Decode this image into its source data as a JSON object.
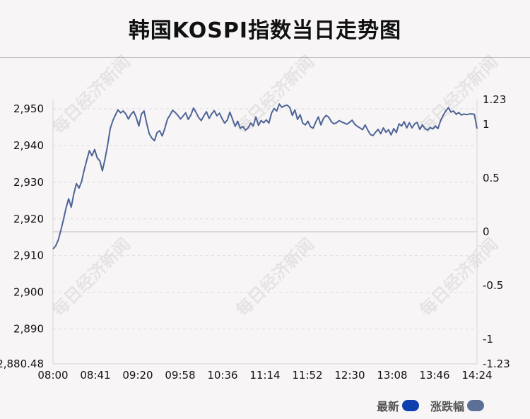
{
  "title": "韩国KOSPI指数当日走势图",
  "watermark": "每日经济新闻",
  "legend": [
    {
      "label": "最新",
      "color": "#0e3fae"
    },
    {
      "label": "涨跌幅",
      "color": "#5c7096"
    }
  ],
  "colors": {
    "line": "#4d6496",
    "grid": "#dcdcdc",
    "zero_line": "#cfcfcf",
    "axis_text": "#111111"
  },
  "chart_data": {
    "type": "line",
    "xlabel": "",
    "ylabel": "",
    "x_ticks": [
      "08:00",
      "08:41",
      "09:20",
      "09:58",
      "10:36",
      "11:14",
      "11:52",
      "12:30",
      "13:08",
      "13:46",
      "14:24"
    ],
    "y_left": {
      "range": [
        2880.48,
        2952.5
      ],
      "ticks": [
        2950,
        2940,
        2930,
        2920,
        2910,
        2900,
        2890
      ],
      "tick_labels": [
        "2,950",
        "2,940",
        "2,930",
        "2,920",
        "2,910",
        "2,900",
        "2,890"
      ],
      "min_label": "2,880.48"
    },
    "y_right": {
      "range": [
        -1.23,
        1.23
      ],
      "ticks": [
        1.23,
        1,
        0.5,
        0,
        -0.5,
        -1,
        -1.23
      ],
      "tick_labels": [
        "1.23",
        "1",
        "0.5",
        "0",
        "-0.5",
        "-1",
        "-1.23"
      ]
    },
    "series": [
      {
        "values": [
          2911.8,
          2912.6,
          2914.2,
          2916.8,
          2919.7,
          2922.9,
          2925.5,
          2923.2,
          2926.8,
          2929.6,
          2928.4,
          2930.2,
          2933.4,
          2936.1,
          2938.6,
          2937.2,
          2938.9,
          2936.6,
          2935.8,
          2933.1,
          2936.3,
          2940.1,
          2944.6,
          2946.8,
          2948.3,
          2949.7,
          2948.9,
          2949.4,
          2948.6,
          2947.2,
          2948.5,
          2949.3,
          2947.6,
          2945.3,
          2948.6,
          2949.4,
          2946.1,
          2943.2,
          2942.0,
          2941.3,
          2943.5,
          2944.0,
          2942.6,
          2944.7,
          2947.2,
          2948.3,
          2949.6,
          2949.0,
          2948.2,
          2947.2,
          2948.0,
          2948.9,
          2947.1,
          2948.3,
          2950.2,
          2949.0,
          2947.6,
          2946.8,
          2948.1,
          2949.2,
          2947.4,
          2948.6,
          2949.5,
          2948.1,
          2948.8,
          2947.3,
          2946.1,
          2946.9,
          2949.1,
          2947.2,
          2945.2,
          2946.6,
          2944.7,
          2945.2,
          2944.2,
          2944.8,
          2946.1,
          2945.3,
          2947.8,
          2945.5,
          2946.8,
          2946.2,
          2947.0,
          2946.1,
          2948.8,
          2950.1,
          2949.4,
          2951.3,
          2950.4,
          2950.8,
          2951.0,
          2950.4,
          2948.2,
          2949.7,
          2947.1,
          2948.4,
          2946.1,
          2945.6,
          2946.6,
          2945.1,
          2944.7,
          2946.4,
          2947.8,
          2945.6,
          2947.4,
          2948.2,
          2947.7,
          2946.5,
          2945.9,
          2946.2,
          2946.8,
          2946.4,
          2946.1,
          2945.8,
          2946.3,
          2946.9,
          2945.8,
          2945.2,
          2944.8,
          2944.3,
          2945.6,
          2944.2,
          2943.0,
          2942.7,
          2943.6,
          2944.4,
          2943.2,
          2944.8,
          2943.6,
          2944.3,
          2942.9,
          2944.6,
          2943.5,
          2945.9,
          2945.3,
          2946.5,
          2944.8,
          2946.2,
          2944.8,
          2945.9,
          2946.3,
          2944.4,
          2945.6,
          2944.6,
          2944.2,
          2944.9,
          2944.5,
          2945.3,
          2944.6,
          2946.8,
          2948.2,
          2949.4,
          2950.3,
          2949.1,
          2949.4,
          2948.5,
          2949.0,
          2948.3,
          2948.6,
          2948.4,
          2948.6,
          2948.6,
          2948.5,
          2944.6
        ]
      }
    ],
    "grid": true,
    "zero_line_value": 0
  }
}
